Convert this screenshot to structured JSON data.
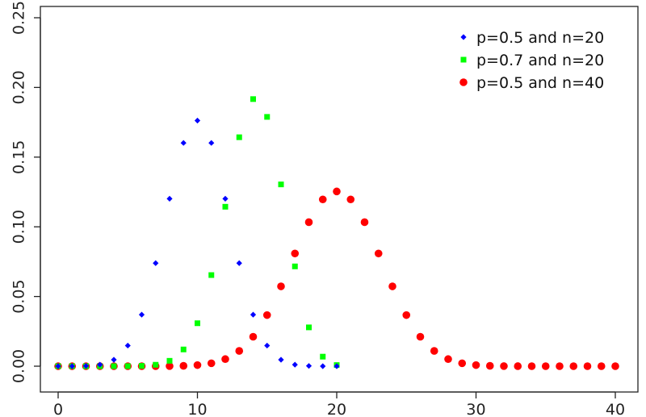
{
  "chart_data": {
    "type": "scatter",
    "title": "",
    "xlabel": "",
    "ylabel": "",
    "xlim": [
      0,
      40
    ],
    "ylim": [
      0,
      0.25
    ],
    "x_ticks": [
      0,
      10,
      20,
      30,
      40
    ],
    "x_tick_labels": [
      "0",
      "10",
      "20",
      "30",
      "40"
    ],
    "y_ticks": [
      0,
      0.05,
      0.1,
      0.15,
      0.2,
      0.25
    ],
    "y_tick_labels": [
      "0.00",
      "0.05",
      "0.10",
      "0.15",
      "0.20",
      "0.25"
    ],
    "grid": false,
    "legend_position": "top-right",
    "series": [
      {
        "name": "p=0.5 and n=20",
        "marker": "diamond",
        "color": "#0000ff",
        "x": [
          0,
          1,
          2,
          3,
          4,
          5,
          6,
          7,
          8,
          9,
          10,
          11,
          12,
          13,
          14,
          15,
          16,
          17,
          18,
          19,
          20
        ],
        "y": [
          1e-06,
          1.9e-05,
          0.000181,
          0.001087,
          0.004621,
          0.014786,
          0.036964,
          0.073929,
          0.120134,
          0.160179,
          0.176197,
          0.160179,
          0.120134,
          0.073929,
          0.036964,
          0.014786,
          0.004621,
          0.001087,
          0.000181,
          1.9e-05,
          1e-06
        ]
      },
      {
        "name": "p=0.7 and n=20",
        "marker": "square",
        "color": "#00ff00",
        "x": [
          0,
          1,
          2,
          3,
          4,
          5,
          6,
          7,
          8,
          9,
          10,
          11,
          12,
          13,
          14,
          15,
          16,
          17,
          18,
          19,
          20
        ],
        "y": [
          0,
          0,
          0,
          0,
          5e-06,
          3.7e-05,
          0.000218,
          0.001018,
          0.003859,
          0.012007,
          0.030817,
          0.06537,
          0.114397,
          0.164262,
          0.191639,
          0.178863,
          0.130421,
          0.071604,
          0.027846,
          0.006839,
          0.000798
        ]
      },
      {
        "name": "p=0.5 and n=40",
        "marker": "circle",
        "color": "#ff0000",
        "x": [
          0,
          1,
          2,
          3,
          4,
          5,
          6,
          7,
          8,
          9,
          10,
          11,
          12,
          13,
          14,
          15,
          16,
          17,
          18,
          19,
          20,
          21,
          22,
          23,
          24,
          25,
          26,
          27,
          28,
          29,
          30,
          31,
          32,
          33,
          34,
          35,
          36,
          37,
          38,
          39,
          40
        ],
        "y": [
          0,
          0,
          0,
          0,
          0,
          1e-06,
          3e-06,
          1.7e-05,
          7e-05,
          0.000249,
          0.000772,
          0.002104,
          0.005084,
          0.01095,
          0.021118,
          0.03666,
          0.057283,
          0.080866,
          0.10333,
          0.119645,
          0.125371,
          0.119645,
          0.10333,
          0.080866,
          0.057283,
          0.03666,
          0.021118,
          0.01095,
          0.005084,
          0.002104,
          0.000772,
          0.000249,
          7e-05,
          1.7e-05,
          3e-06,
          1e-06,
          0,
          0,
          0,
          0,
          0
        ]
      }
    ]
  }
}
